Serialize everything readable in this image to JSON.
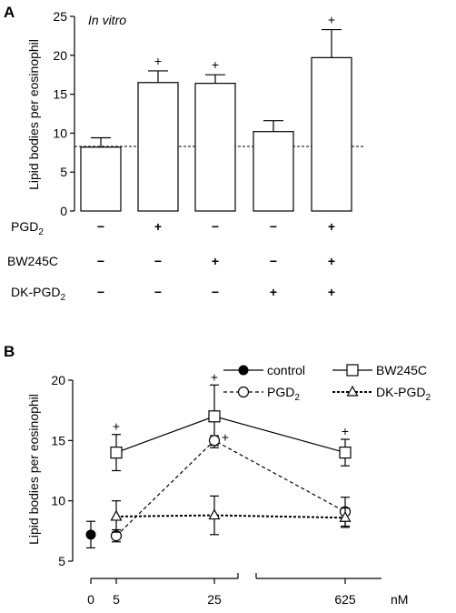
{
  "chart_data": [
    {
      "panel_label": "A",
      "type": "bar",
      "annotation": "In vitro",
      "ylabel": "Lipid bodies per eosinophil",
      "ylim": [
        0,
        25
      ],
      "yticks": [
        0,
        5,
        10,
        15,
        20,
        25
      ],
      "baseline": 8.3,
      "values": [
        8.2,
        16.5,
        16.4,
        10.2,
        19.7
      ],
      "errors": [
        1.2,
        1.5,
        1.1,
        1.4,
        3.6
      ],
      "significance": [
        "",
        "+",
        "+",
        "",
        "+"
      ],
      "conditions": [
        {
          "label": "PGD",
          "sub": "2",
          "signs": [
            "−",
            "+",
            "−",
            "−",
            "+"
          ]
        },
        {
          "label": "BW245C",
          "sub": "",
          "signs": [
            "−",
            "−",
            "+",
            "−",
            "+"
          ]
        },
        {
          "label": "DK-PGD",
          "sub": "2",
          "signs": [
            "−",
            "−",
            "−",
            "+",
            "+"
          ]
        }
      ]
    },
    {
      "panel_label": "B",
      "type": "line",
      "ylabel": "Lipid bodies per eosinophil",
      "ylim": [
        5,
        20
      ],
      "yticks": [
        5,
        10,
        15,
        20
      ],
      "xticks": [
        "0",
        "5",
        "25",
        "625"
      ],
      "x_unit": "nM",
      "control": {
        "name": "control",
        "x": "0",
        "y": 7.2,
        "err": 1.1
      },
      "series": [
        {
          "name": "BW245C",
          "sub": "",
          "marker": "square",
          "dash": "solid",
          "x": [
            "5",
            "25",
            "625"
          ],
          "y": [
            14.0,
            17.0,
            14.0
          ],
          "err": [
            1.5,
            2.6,
            1.1
          ],
          "sig": [
            "+",
            "+",
            "+"
          ]
        },
        {
          "name": "PGD",
          "sub": "2",
          "marker": "circle",
          "dash": "dashed",
          "x": [
            "5",
            "25",
            "625"
          ],
          "y": [
            7.1,
            15.0,
            9.1
          ],
          "err": [
            0.5,
            0.4,
            1.2
          ],
          "sig": [
            "",
            "+",
            ""
          ]
        },
        {
          "name": "DK-PGD",
          "sub": "2",
          "marker": "triangle",
          "dash": "dotted",
          "x": [
            "5",
            "25",
            "625"
          ],
          "y": [
            8.7,
            8.8,
            8.6
          ],
          "err": [
            1.3,
            1.6,
            0.8
          ],
          "sig": [
            "",
            "",
            ""
          ]
        }
      ],
      "legend_order": [
        "control",
        "PGD",
        "BW245C",
        "DK-PGD"
      ]
    }
  ]
}
